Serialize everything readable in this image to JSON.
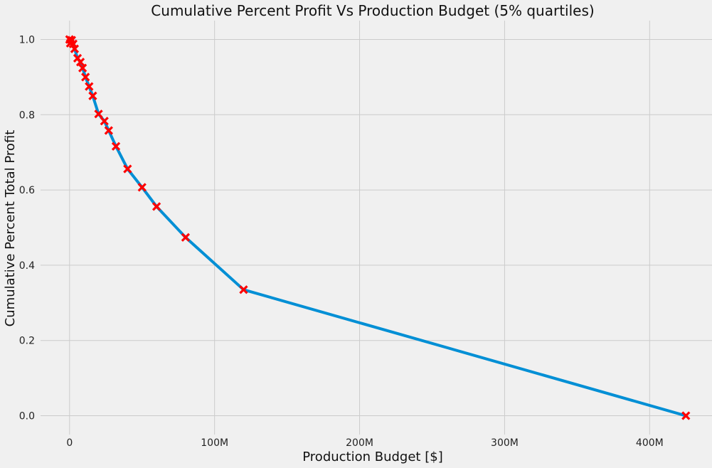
{
  "chart_data": {
    "type": "line",
    "title": "Cumulative Percent Profit Vs Production Budget (5% quartiles)",
    "xlabel": "Production Budget [$]",
    "ylabel": "Cumulative Percent Total Profit",
    "xlim": [
      -20000000,
      443000000
    ],
    "ylim": [
      -0.05,
      1.05
    ],
    "x_ticks": [
      {
        "value": 0,
        "label": "0"
      },
      {
        "value": 100000000,
        "label": "100M"
      },
      {
        "value": 200000000,
        "label": "200M"
      },
      {
        "value": 300000000,
        "label": "300M"
      },
      {
        "value": 400000000,
        "label": "400M"
      }
    ],
    "y_ticks": [
      {
        "value": 0.0,
        "label": "0.0"
      },
      {
        "value": 0.2,
        "label": "0.2"
      },
      {
        "value": 0.4,
        "label": "0.4"
      },
      {
        "value": 0.6,
        "label": "0.6"
      },
      {
        "value": 0.8,
        "label": "0.8"
      },
      {
        "value": 1.0,
        "label": "1.0"
      }
    ],
    "grid": true,
    "series": [
      {
        "line_color": "#008fd5",
        "marker": "x",
        "marker_color": "#ff0000",
        "points": [
          {
            "x": 0,
            "y": 1.0
          },
          {
            "x": 500000,
            "y": 0.99
          },
          {
            "x": 1500000,
            "y": 0.998
          },
          {
            "x": 2500000,
            "y": 0.988
          },
          {
            "x": 3500000,
            "y": 0.975
          },
          {
            "x": 5500000,
            "y": 0.95
          },
          {
            "x": 7500000,
            "y": 0.94
          },
          {
            "x": 9000000,
            "y": 0.924
          },
          {
            "x": 11000000,
            "y": 0.9
          },
          {
            "x": 13500000,
            "y": 0.875
          },
          {
            "x": 16000000,
            "y": 0.85
          },
          {
            "x": 20000000,
            "y": 0.802
          },
          {
            "x": 24000000,
            "y": 0.783
          },
          {
            "x": 27000000,
            "y": 0.758
          },
          {
            "x": 32000000,
            "y": 0.716
          },
          {
            "x": 40000000,
            "y": 0.656
          },
          {
            "x": 50000000,
            "y": 0.607
          },
          {
            "x": 60000000,
            "y": 0.556
          },
          {
            "x": 80000000,
            "y": 0.474
          },
          {
            "x": 120000000,
            "y": 0.335
          },
          {
            "x": 425000000,
            "y": 0.0
          }
        ]
      }
    ]
  }
}
